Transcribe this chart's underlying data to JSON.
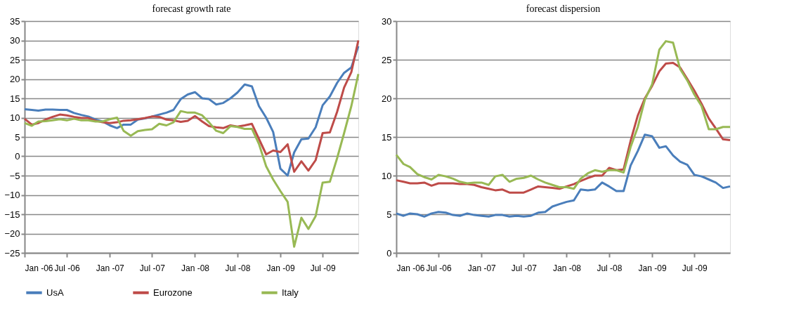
{
  "chart_data": [
    {
      "type": "line",
      "title": "forecast growth rate",
      "x": [
        "2006-01",
        "2006-02",
        "2006-03",
        "2006-04",
        "2006-05",
        "2006-06",
        "2006-07",
        "2006-08",
        "2006-09",
        "2006-10",
        "2006-11",
        "2006-12",
        "2007-01",
        "2007-02",
        "2007-03",
        "2007-04",
        "2007-05",
        "2007-06",
        "2007-07",
        "2007-08",
        "2007-09",
        "2007-10",
        "2007-11",
        "2007-12",
        "2008-01",
        "2008-02",
        "2008-03",
        "2008-04",
        "2008-05",
        "2008-06",
        "2008-07",
        "2008-08",
        "2008-09",
        "2008-10",
        "2008-11",
        "2008-12",
        "2009-01",
        "2009-02",
        "2009-03",
        "2009-04",
        "2009-05",
        "2009-06",
        "2009-07",
        "2009-08",
        "2009-09",
        "2009-10",
        "2009-11",
        "2009-12"
      ],
      "series": [
        {
          "name": "UsA",
          "color": "#4a7ebb",
          "values": [
            12.2,
            12.0,
            11.8,
            12.1,
            12.1,
            12.0,
            12.0,
            11.2,
            10.7,
            10.3,
            9.5,
            9.0,
            8.0,
            7.3,
            8.2,
            8.2,
            9.5,
            9.8,
            10.3,
            10.8,
            11.3,
            12.0,
            14.8,
            16.0,
            16.6,
            15.0,
            14.8,
            13.4,
            13.8,
            15.0,
            16.5,
            18.6,
            18.1,
            13.0,
            10.0,
            6.3,
            -3.2,
            -5.0,
            1.0,
            4.4,
            4.6,
            7.5,
            13.2,
            15.5,
            19.0,
            21.6,
            23.0,
            28.5
          ]
        },
        {
          "name": "Eurozone",
          "color": "#be4b48",
          "values": [
            9.7,
            8.2,
            8.6,
            9.5,
            10.2,
            10.8,
            10.6,
            10.2,
            9.9,
            9.9,
            9.2,
            8.8,
            8.6,
            8.8,
            9.2,
            9.3,
            9.6,
            9.9,
            10.3,
            10.2,
            9.5,
            9.3,
            8.9,
            9.2,
            10.4,
            9.0,
            7.8,
            7.5,
            7.3,
            8.0,
            7.7,
            8.0,
            8.4,
            4.5,
            0.5,
            1.5,
            1.1,
            3.1,
            -4.0,
            -1.3,
            -3.7,
            -1.0,
            6.0,
            6.2,
            11.5,
            17.8,
            21.8,
            30.0
          ]
        },
        {
          "name": "Italy",
          "color": "#98b954",
          "values": [
            8.6,
            7.9,
            9.0,
            9.1,
            9.3,
            9.6,
            9.3,
            9.7,
            9.3,
            9.3,
            9.0,
            9.0,
            9.6,
            10.0,
            6.6,
            5.3,
            6.5,
            6.8,
            7.0,
            8.4,
            8.0,
            8.8,
            11.7,
            11.3,
            11.3,
            10.6,
            8.8,
            6.6,
            6.0,
            7.8,
            7.6,
            7.1,
            7.1,
            3.2,
            -2.6,
            -6.0,
            -9.0,
            -11.8,
            -23.4,
            -15.9,
            -18.8,
            -15.5,
            -6.8,
            -6.6,
            -0.5,
            6.0,
            13.0,
            21.3
          ]
        }
      ],
      "xlim": [
        "2006-01",
        "2009-12"
      ],
      "xticks": [
        {
          "value": "2006-01",
          "label": "Jan -06"
        },
        {
          "value": "2006-07",
          "label": "Jul -06"
        },
        {
          "value": "2007-01",
          "label": "Jan -07"
        },
        {
          "value": "2007-07",
          "label": "Jul -07"
        },
        {
          "value": "2008-01",
          "label": "Jan -08"
        },
        {
          "value": "2008-07",
          "label": "Jul -08"
        },
        {
          "value": "2009-01",
          "label": "Jan -09"
        },
        {
          "value": "2009-07",
          "label": "Jul -09"
        }
      ],
      "ylim": [
        -25,
        35
      ],
      "yticks": [
        -25,
        -20,
        -15,
        -10,
        -5,
        0,
        5,
        10,
        15,
        20,
        25,
        30,
        35
      ],
      "grid": "y",
      "legend": "bottom",
      "marker": "none",
      "line_style": "solid"
    },
    {
      "type": "line",
      "title": "forecast dispersion",
      "x": [
        "2006-01",
        "2006-02",
        "2006-03",
        "2006-04",
        "2006-05",
        "2006-06",
        "2006-07",
        "2006-08",
        "2006-09",
        "2006-10",
        "2006-11",
        "2006-12",
        "2007-01",
        "2007-02",
        "2007-03",
        "2007-04",
        "2007-05",
        "2007-06",
        "2007-07",
        "2007-08",
        "2007-09",
        "2007-10",
        "2007-11",
        "2007-12",
        "2008-01",
        "2008-02",
        "2008-03",
        "2008-04",
        "2008-05",
        "2008-06",
        "2008-07",
        "2008-08",
        "2008-09",
        "2008-10",
        "2008-11",
        "2008-12",
        "2009-01",
        "2009-02",
        "2009-03",
        "2009-04",
        "2009-05",
        "2009-06",
        "2009-07",
        "2009-08",
        "2009-09",
        "2009-10",
        "2009-11",
        "2009-12"
      ],
      "series": [
        {
          "name": "UsA",
          "color": "#4a7ebb",
          "values": [
            5.1,
            4.8,
            5.1,
            5.0,
            4.7,
            5.1,
            5.3,
            5.2,
            4.9,
            4.8,
            5.1,
            4.9,
            4.8,
            4.7,
            4.9,
            4.9,
            4.7,
            4.8,
            4.7,
            4.8,
            5.2,
            5.3,
            6.0,
            6.3,
            6.6,
            6.8,
            8.2,
            8.1,
            8.2,
            9.1,
            8.6,
            8.0,
            8.0,
            11.3,
            13.2,
            15.3,
            15.1,
            13.6,
            13.8,
            12.6,
            11.8,
            11.4,
            10.1,
            9.9,
            9.5,
            9.1,
            8.4,
            8.6
          ]
        },
        {
          "name": "Eurozone",
          "color": "#be4b48",
          "values": [
            9.4,
            9.2,
            9.0,
            9.0,
            9.1,
            8.7,
            9.0,
            9.0,
            9.0,
            8.9,
            8.9,
            8.8,
            8.5,
            8.3,
            8.1,
            8.2,
            7.8,
            7.8,
            7.8,
            8.2,
            8.6,
            8.5,
            8.4,
            8.3,
            8.6,
            8.9,
            9.3,
            9.7,
            10.0,
            10.0,
            11.0,
            10.7,
            10.8,
            14.5,
            17.8,
            20.0,
            21.6,
            23.5,
            24.5,
            24.6,
            24.0,
            22.5,
            21.0,
            19.3,
            17.4,
            16.1,
            14.7,
            14.6
          ]
        },
        {
          "name": "Italy",
          "color": "#98b954",
          "values": [
            12.7,
            11.5,
            11.1,
            10.2,
            9.8,
            9.5,
            10.1,
            9.9,
            9.6,
            9.2,
            9.0,
            9.1,
            9.1,
            8.8,
            9.9,
            10.1,
            9.2,
            9.6,
            9.7,
            10.0,
            9.5,
            9.1,
            8.8,
            8.5,
            8.5,
            8.3,
            9.6,
            10.3,
            10.7,
            10.5,
            10.7,
            10.7,
            10.4,
            13.7,
            16.3,
            19.8,
            21.8,
            26.3,
            27.4,
            27.2,
            23.8,
            22.3,
            20.5,
            19.0,
            16.0,
            16.0,
            16.3,
            16.3
          ]
        }
      ],
      "xlim": [
        "2006-01",
        "2009-12"
      ],
      "xticks": [
        {
          "value": "2006-01",
          "label": "Jan -06"
        },
        {
          "value": "2006-07",
          "label": "Jul -06"
        },
        {
          "value": "2007-01",
          "label": "Jan -07"
        },
        {
          "value": "2007-07",
          "label": "Jul -07"
        },
        {
          "value": "2008-01",
          "label": "Jan -08"
        },
        {
          "value": "2008-07",
          "label": "Jul -08"
        },
        {
          "value": "2009-01",
          "label": "Jan -09"
        },
        {
          "value": "2009-07",
          "label": "Jul -09"
        }
      ],
      "ylim": [
        0,
        30
      ],
      "yticks": [
        0,
        5,
        10,
        15,
        20,
        25,
        30
      ],
      "grid": "y",
      "legend": "bottom",
      "marker": "none",
      "line_style": "solid"
    }
  ]
}
